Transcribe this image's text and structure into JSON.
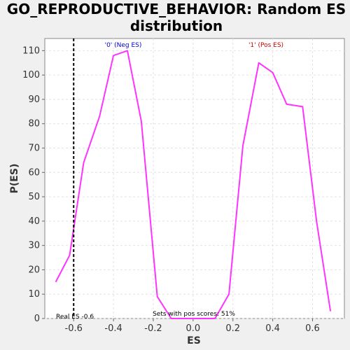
{
  "chart_data": {
    "type": "line",
    "title_line1": "GO_REPRODUCTIVE_BEHAVIOR: Random ES",
    "title_line2": "distribution",
    "xlabel": "ES",
    "ylabel": "P(ES)",
    "xlim": [
      -0.745,
      0.76
    ],
    "ylim": [
      0,
      115
    ],
    "x_ticks": [
      -0.6,
      -0.4,
      -0.2,
      0.0,
      0.2,
      0.4,
      0.6
    ],
    "x_tick_labels": [
      "-0.6",
      "-0.4",
      "-0.2",
      "0.0",
      "0.2",
      "0.4",
      "0.6"
    ],
    "y_ticks": [
      0,
      10,
      20,
      30,
      40,
      50,
      60,
      70,
      80,
      90,
      100,
      110
    ],
    "y_tick_labels": [
      "0",
      "10",
      "20",
      "30",
      "40",
      "50",
      "60",
      "70",
      "80",
      "90",
      "100",
      "110"
    ],
    "grid": true,
    "series": [
      {
        "color": "#ff33ff",
        "x": [
          -0.69,
          -0.62,
          -0.55,
          -0.47,
          -0.4,
          -0.33,
          -0.26,
          -0.18,
          -0.11,
          -0.04,
          0.04,
          0.11,
          0.18,
          0.25,
          0.33,
          0.4,
          0.47,
          0.55,
          0.62,
          0.69
        ],
        "y": [
          15,
          26,
          64,
          83,
          108,
          110,
          81,
          9,
          0,
          0,
          0,
          0,
          10,
          71,
          105,
          101,
          88,
          87,
          40,
          3
        ]
      }
    ],
    "real_es": {
      "x": -0.6,
      "label": "Real ES -0.6",
      "color": "#000000"
    },
    "annotations": {
      "neg_label": "'0' (Neg ES)",
      "neg_color": "#0000cc",
      "pos_label": "'1' (Pos ES)",
      "pos_color": "#cc0000",
      "sets_label": "Sets with pos scores: 51%"
    }
  }
}
